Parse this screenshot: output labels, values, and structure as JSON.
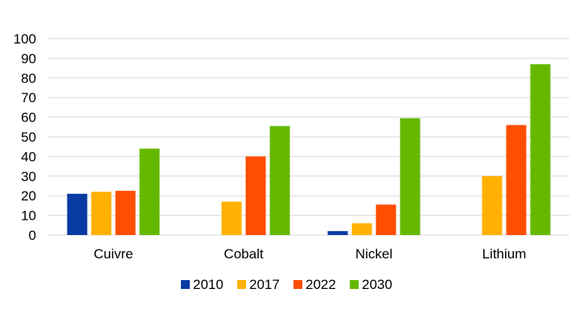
{
  "chart_data": {
    "type": "bar",
    "title": "",
    "xlabel": "",
    "ylabel": "",
    "ylim": [
      0,
      100
    ],
    "yticks": [
      0,
      10,
      20,
      30,
      40,
      50,
      60,
      70,
      80,
      90,
      100
    ],
    "grid": true,
    "legend_position": "bottom",
    "categories": [
      "Cuivre",
      "Cobalt",
      "Nickel",
      "Lithium"
    ],
    "series": [
      {
        "name": "2010",
        "color": "#0A3AA3",
        "values": [
          21,
          null,
          2,
          null
        ]
      },
      {
        "name": "2017",
        "color": "#FFB000",
        "values": [
          22,
          17,
          6,
          30
        ]
      },
      {
        "name": "2022",
        "color": "#FF4E00",
        "values": [
          22.5,
          40,
          15.5,
          56
        ]
      },
      {
        "name": "2030",
        "color": "#64B900",
        "values": [
          44,
          55.5,
          59.5,
          87
        ]
      }
    ]
  }
}
